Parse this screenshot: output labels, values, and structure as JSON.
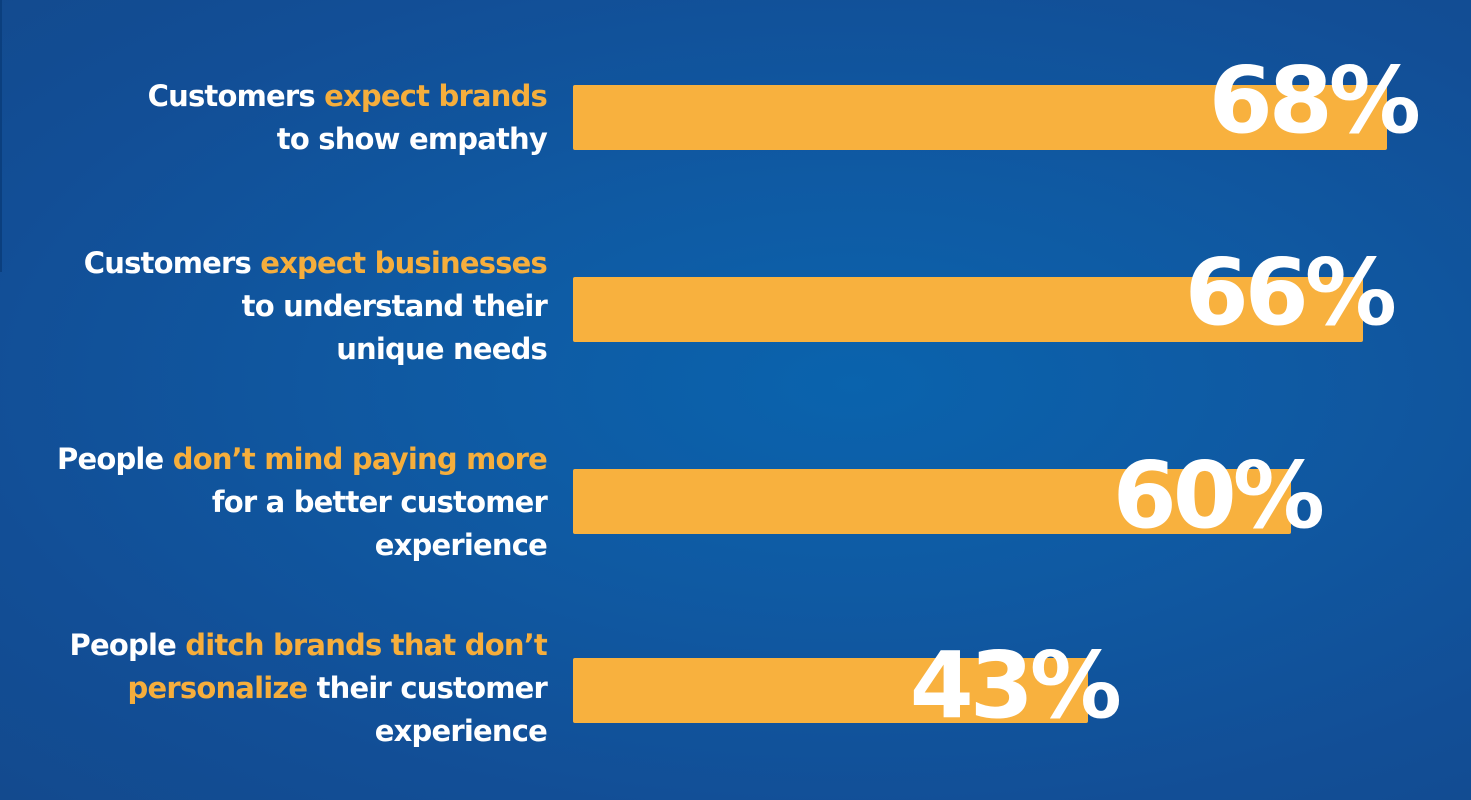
{
  "colors": {
    "background": "#0f5aa3",
    "bar": "#f8b13e",
    "highlight": "#f6ae3c",
    "text": "#ffffff"
  },
  "chart_data": {
    "type": "bar",
    "orientation": "horizontal",
    "xlim": [
      0,
      100
    ],
    "categories": [
      "Customers expect brands to show empathy",
      "Customers expect businesses to understand their unique needs",
      "People don’t mind paying more for a better customer experience",
      "People ditch brands that don’t personalize their customer experience"
    ],
    "values": [
      68,
      66,
      60,
      43
    ],
    "value_labels": [
      "68%",
      "66%",
      "60%",
      "43%"
    ],
    "label_parts": [
      [
        {
          "text": "Customers ",
          "highlight": false
        },
        {
          "text": "expect brands",
          "highlight": true
        },
        {
          "text": "\nto show empathy",
          "highlight": false
        }
      ],
      [
        {
          "text": "Customers ",
          "highlight": false
        },
        {
          "text": "expect businesses",
          "highlight": true
        },
        {
          "text": "\nto understand their\nunique needs",
          "highlight": false
        }
      ],
      [
        {
          "text": "People ",
          "highlight": false
        },
        {
          "text": "don’t mind paying more",
          "highlight": true
        },
        {
          "text": "\nfor a better customer\nexperience",
          "highlight": false
        }
      ],
      [
        {
          "text": "People ",
          "highlight": false
        },
        {
          "text": "ditch brands that don’t\npersonalize",
          "highlight": true
        },
        {
          "text": " their customer\nexperience",
          "highlight": false
        }
      ]
    ]
  }
}
